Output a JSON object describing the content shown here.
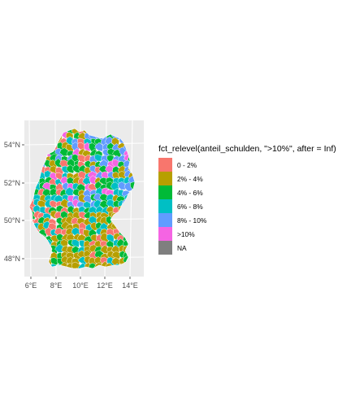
{
  "map": {
    "x_ticks": [
      "6°E",
      "8°E",
      "10°E",
      "12°E",
      "14°E"
    ],
    "y_ticks": [
      "54°N",
      "52°N",
      "50°N",
      "48°N"
    ],
    "panel_color": "#ebebeb",
    "grid_color": "#ffffff",
    "region_border_color": "#ffffff"
  },
  "legend": {
    "title": "fct_relevel(anteil_schulden, \">10%\", after = Inf)",
    "items": [
      {
        "label": "0 - 2%",
        "color": "#F8766D"
      },
      {
        "label": "2% - 4%",
        "color": "#B79F00"
      },
      {
        "label": "4% - 6%",
        "color": "#00BA38"
      },
      {
        "label": "6% - 8%",
        "color": "#00BFC4"
      },
      {
        "label": "8% - 10%",
        "color": "#619CFF"
      },
      {
        "label": ">10%",
        "color": "#F564E3"
      },
      {
        "label": "NA",
        "color": "#7F7F7F"
      }
    ]
  }
}
